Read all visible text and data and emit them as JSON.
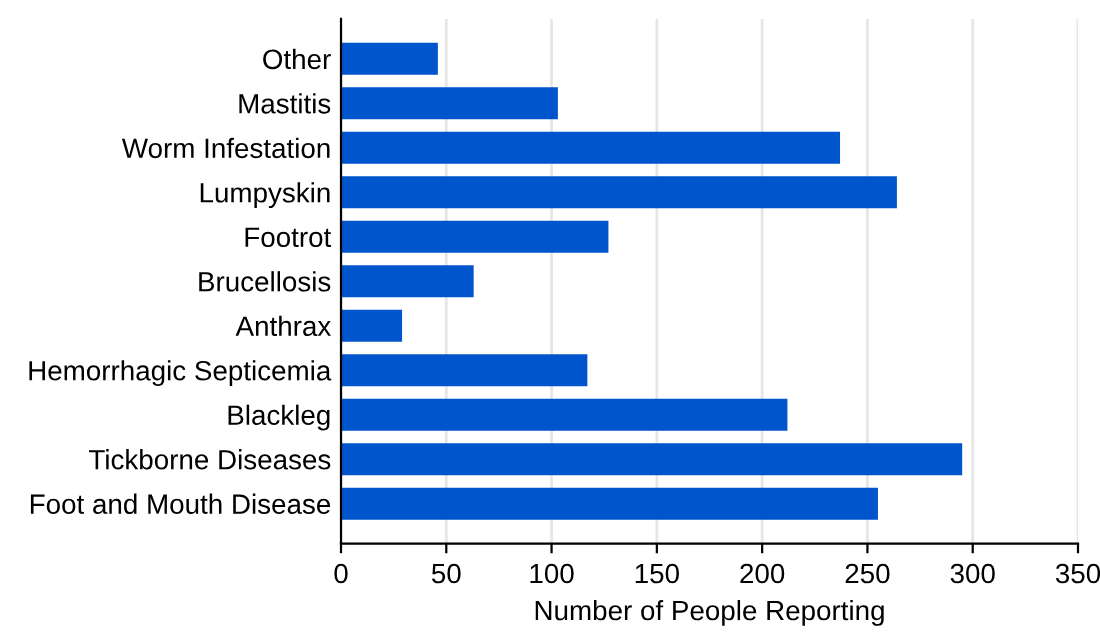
{
  "chart_data": {
    "type": "bar",
    "orientation": "horizontal",
    "xlabel": "Number of People Reporting",
    "categories": [
      "Other",
      "Mastitis",
      "Worm Infestation",
      "Lumpyskin",
      "Footrot",
      "Brucellosis",
      "Anthrax",
      "Hemorrhagic Septicemia",
      "Blackleg",
      "Tickborne Diseases",
      "Foot and Mouth Disease"
    ],
    "values": [
      46,
      103,
      237,
      264,
      127,
      63,
      29,
      117,
      212,
      295,
      255
    ],
    "color": "#0055cc",
    "xlim": [
      0,
      350
    ],
    "xticks": [
      0,
      50,
      100,
      150,
      200,
      250,
      300,
      350
    ],
    "grid": "x"
  }
}
